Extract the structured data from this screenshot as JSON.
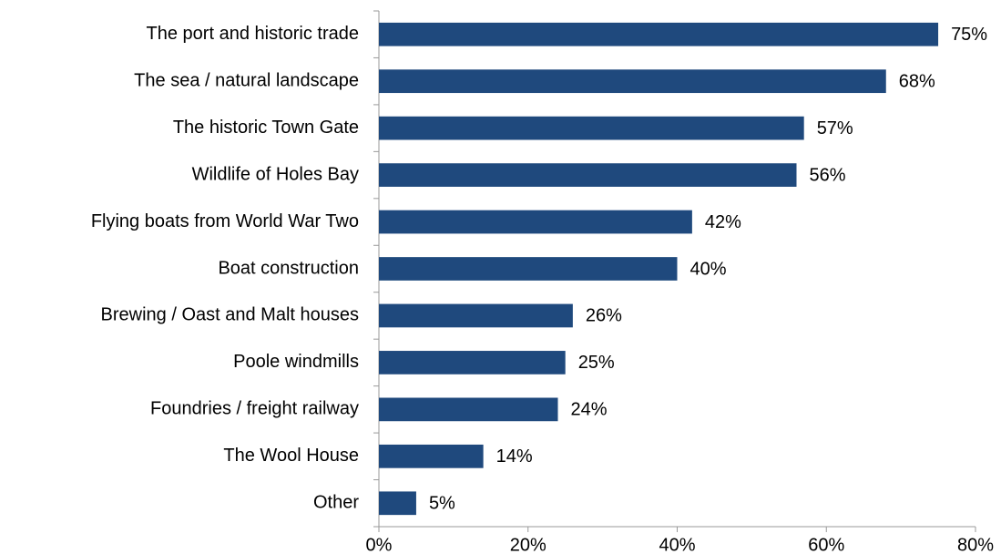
{
  "chart_data": {
    "type": "bar",
    "orientation": "horizontal",
    "categories": [
      "The port and historic trade",
      "The sea / natural landscape",
      "The historic Town Gate",
      "Wildlife of Holes Bay",
      "Flying boats from World War Two",
      "Boat construction",
      "Brewing / Oast and Malt houses",
      "Poole windmills",
      "Foundries / freight railway",
      "The Wool House",
      "Other"
    ],
    "values": [
      75,
      68,
      57,
      56,
      42,
      40,
      26,
      25,
      24,
      14,
      5
    ],
    "value_labels": [
      "75%",
      "68%",
      "57%",
      "56%",
      "42%",
      "40%",
      "26%",
      "25%",
      "24%",
      "14%",
      "5%"
    ],
    "color": "#1f497d",
    "xlim": [
      0,
      80
    ],
    "xticks": [
      {
        "value": 0,
        "label": "0%"
      },
      {
        "value": 20,
        "label": "20%"
      },
      {
        "value": 40,
        "label": "40%"
      },
      {
        "value": 60,
        "label": "60%"
      },
      {
        "value": 80,
        "label": "80%"
      }
    ],
    "grid": false
  }
}
